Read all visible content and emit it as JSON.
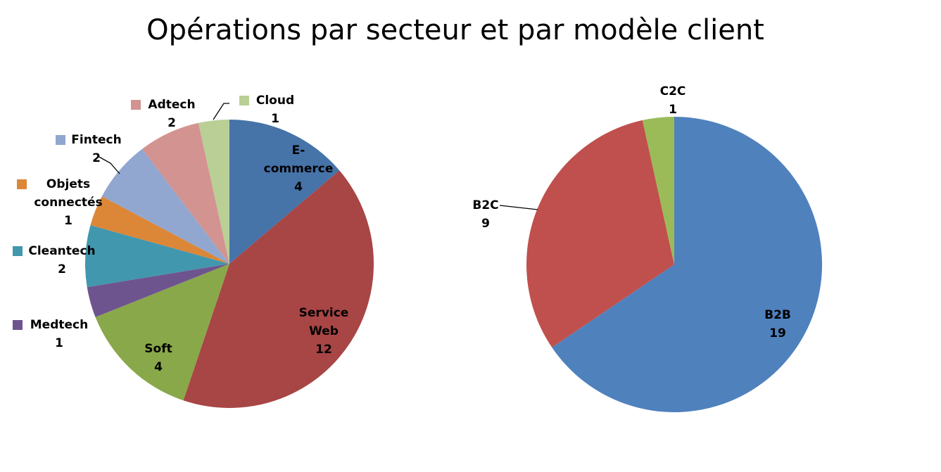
{
  "title": "Opérations par secteur et par modèle client",
  "chart_data": [
    {
      "type": "pie",
      "title": "",
      "slices": [
        {
          "label": "E-commerce",
          "value": 4,
          "color": "#4673A8"
        },
        {
          "label": "Service Web",
          "value": 12,
          "color": "#A84545"
        },
        {
          "label": "Soft",
          "value": 4,
          "color": "#89A84A"
        },
        {
          "label": "Medtech",
          "value": 1,
          "color": "#6E548F"
        },
        {
          "label": "Cleantech",
          "value": 2,
          "color": "#4197AE"
        },
        {
          "label": "Objets connectés",
          "value": 1,
          "color": "#DC8738"
        },
        {
          "label": "Fintech",
          "value": 2,
          "color": "#91A7D0"
        },
        {
          "label": "Adtech",
          "value": 2,
          "color": "#D39391"
        },
        {
          "label": "Cloud",
          "value": 1,
          "color": "#BACF95"
        }
      ]
    },
    {
      "type": "pie",
      "title": "",
      "slices": [
        {
          "label": "B2B",
          "value": 19,
          "color": "#4F81BD"
        },
        {
          "label": "B2C",
          "value": 9,
          "color": "#C0504D"
        },
        {
          "label": "C2C",
          "value": 1,
          "color": "#9BBB59"
        }
      ]
    }
  ]
}
